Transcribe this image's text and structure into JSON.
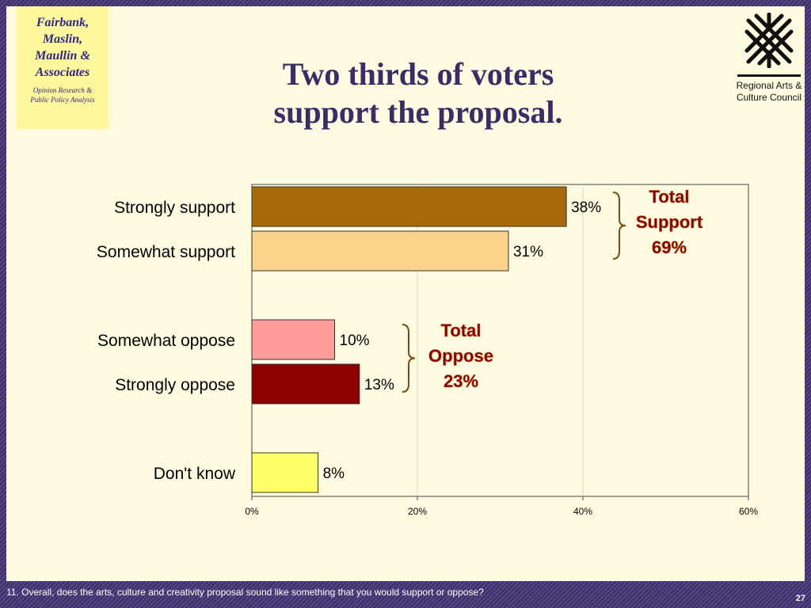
{
  "firm": {
    "name": "Fairbank,\nMaslin,\nMaullin &\nAssociates",
    "tagline": "Opinion Research &\nPublic Policy Analysis"
  },
  "title": "Two thirds of voters\nsupport the proposal.",
  "logo": {
    "icon": "regional-arts-weave-icon",
    "text": "Regional Arts &\nCulture Council"
  },
  "chart_data": {
    "type": "bar",
    "orientation": "horizontal",
    "categories": [
      "Strongly support",
      "Somewhat support",
      "Somewhat oppose",
      "Strongly oppose",
      "Don't know"
    ],
    "values": [
      38,
      31,
      10,
      13,
      8
    ],
    "value_labels": [
      "38%",
      "31%",
      "10%",
      "13%",
      "8%"
    ],
    "colors": [
      "#a8690a",
      "#fdd28c",
      "#ff9c9c",
      "#8c0000",
      "#ffff66"
    ],
    "xlim": [
      0,
      60
    ],
    "ticks": [
      "0%",
      "20%",
      "40%",
      "60%"
    ],
    "grid": true,
    "groups": [
      {
        "label": "Total\nSupport\n69%",
        "color": "#8c0000"
      },
      {
        "label": "Total\nOppose\n23%",
        "color": "#8c0000"
      }
    ]
  },
  "footer": {
    "question": "11. Overall, does the arts, culture and creativity proposal sound like something that you would support or oppose?",
    "page": "27"
  }
}
